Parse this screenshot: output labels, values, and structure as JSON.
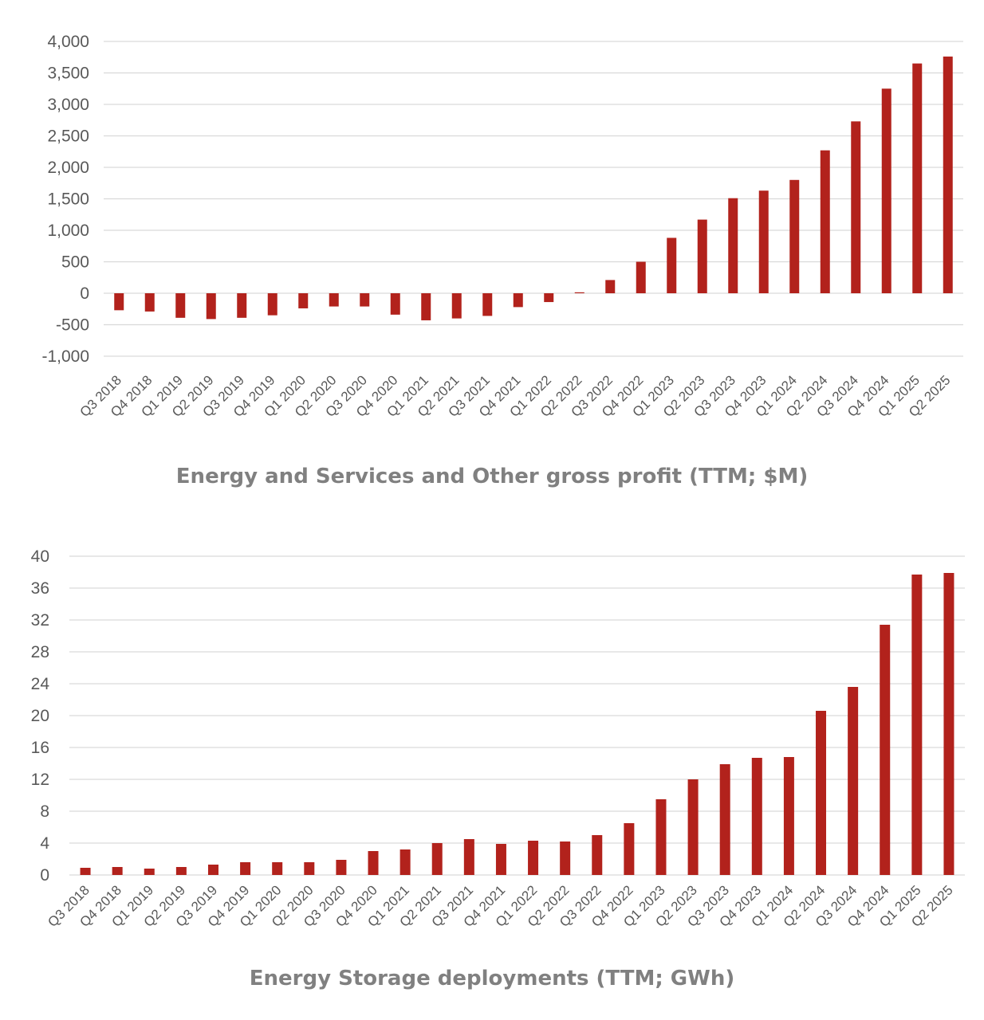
{
  "colors": {
    "bar": "#b2221c",
    "grid": "#d9d9d9",
    "text": "#595959",
    "title": "#808080"
  },
  "chart_data": [
    {
      "type": "bar",
      "title": "Energy and Services and Other gross profit (TTM; $M)",
      "categories": [
        "Q3 2018",
        "Q4 2018",
        "Q1 2019",
        "Q2 2019",
        "Q3 2019",
        "Q4 2019",
        "Q1 2020",
        "Q2 2020",
        "Q3 2020",
        "Q4 2020",
        "Q1 2021",
        "Q2 2021",
        "Q3 2021",
        "Q4 2021",
        "Q1 2022",
        "Q2 2022",
        "Q3 2022",
        "Q4 2022",
        "Q1 2023",
        "Q2 2023",
        "Q3 2023",
        "Q4 2023",
        "Q1 2024",
        "Q2 2024",
        "Q3 2024",
        "Q4 2024",
        "Q1 2025",
        "Q2 2025"
      ],
      "values": [
        -270,
        -290,
        -390,
        -410,
        -390,
        -350,
        -240,
        -210,
        -210,
        -340,
        -430,
        -400,
        -360,
        -220,
        -140,
        15,
        210,
        500,
        880,
        1170,
        1510,
        1630,
        1800,
        2270,
        2730,
        3250,
        3650,
        3760
      ],
      "ylim": [
        -1000,
        4000
      ],
      "yticks": [
        -1000,
        -500,
        0,
        500,
        1000,
        1500,
        2000,
        2500,
        3000,
        3500,
        4000
      ],
      "ytick_labels": [
        "-1,000",
        "-500",
        "0",
        "500",
        "1,000",
        "1,500",
        "2,000",
        "2,500",
        "3,000",
        "3,500",
        "4,000"
      ],
      "xlabel": "",
      "ylabel": "",
      "grid": true
    },
    {
      "type": "bar",
      "title": "Energy Storage deployments (TTM; GWh)",
      "categories": [
        "Q3 2018",
        "Q4 2018",
        "Q1 2019",
        "Q2 2019",
        "Q3 2019",
        "Q4 2019",
        "Q1 2020",
        "Q2 2020",
        "Q3 2020",
        "Q4 2020",
        "Q1 2021",
        "Q2 2021",
        "Q3 2021",
        "Q4 2021",
        "Q1 2022",
        "Q2 2022",
        "Q3 2022",
        "Q4 2022",
        "Q1 2023",
        "Q2 2023",
        "Q3 2023",
        "Q4 2023",
        "Q1 2024",
        "Q2 2024",
        "Q3 2024",
        "Q4 2024",
        "Q1 2025",
        "Q2 2025"
      ],
      "values": [
        0.9,
        1.0,
        0.8,
        1.0,
        1.3,
        1.6,
        1.6,
        1.6,
        1.9,
        3.0,
        3.2,
        4.0,
        4.5,
        3.9,
        4.3,
        4.2,
        5.0,
        6.5,
        9.5,
        12.0,
        13.9,
        14.7,
        14.8,
        20.6,
        23.6,
        31.4,
        37.7,
        37.9
      ],
      "ylim": [
        0,
        40
      ],
      "yticks": [
        0,
        4,
        8,
        12,
        16,
        20,
        24,
        28,
        32,
        36,
        40
      ],
      "ytick_labels": [
        "0",
        "4",
        "8",
        "12",
        "16",
        "20",
        "24",
        "28",
        "32",
        "36",
        "40"
      ],
      "xlabel": "",
      "ylabel": "",
      "grid": true
    }
  ]
}
